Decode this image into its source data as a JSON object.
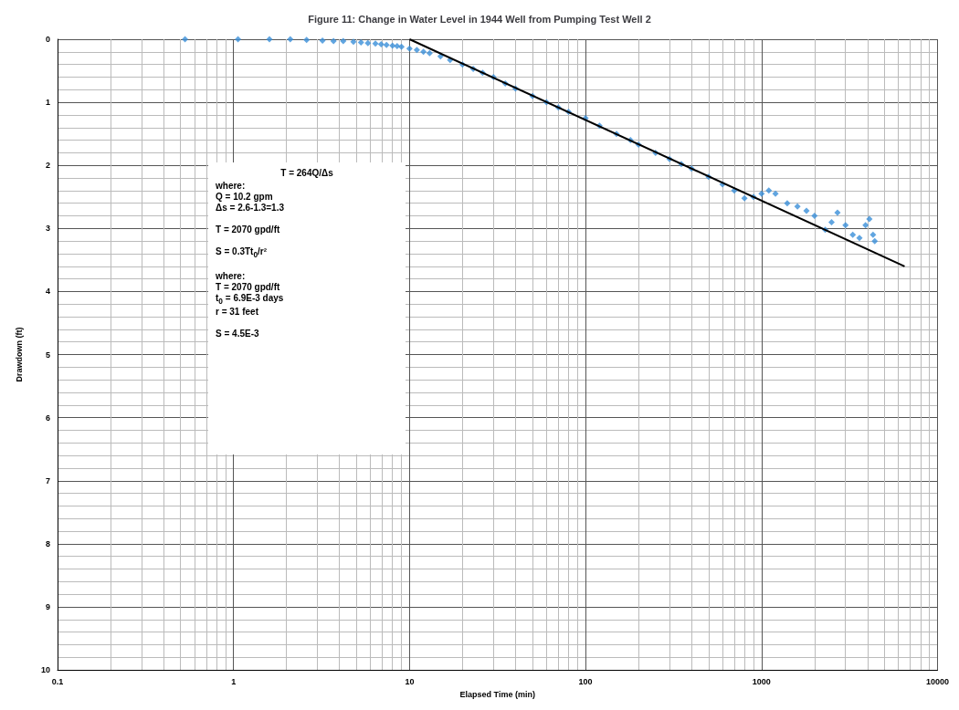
{
  "chart_data": {
    "type": "scatter",
    "title": "Figure 11: Change in Water Level in 1944 Well from Pumping Test Well 2",
    "xlabel": "Elapsed Time (min)",
    "ylabel": "Drawdown (ft)",
    "log": "x",
    "xlim": [
      0.1,
      10000
    ],
    "xticks": [
      0.1,
      1,
      10,
      100,
      1000,
      10000
    ],
    "ylim": [
      10,
      0
    ],
    "yticks": [
      0,
      1,
      2,
      3,
      4,
      5,
      6,
      7,
      8,
      9,
      10
    ],
    "grid": true,
    "marker": "diamond",
    "series": [
      {
        "color": "#3a8fd8",
        "x": [
          0.53,
          1.06,
          1.6,
          2.1,
          2.6,
          3.2,
          3.7,
          4.2,
          4.8,
          5.3,
          5.8,
          6.4,
          6.9,
          7.4,
          8,
          8.5,
          9,
          10,
          11,
          12,
          13,
          15,
          17,
          20,
          23,
          26,
          30,
          35,
          40,
          50,
          60,
          70,
          80,
          100,
          120,
          150,
          180,
          200,
          250,
          300,
          350,
          400,
          500,
          600,
          700,
          800,
          900,
          1000,
          1100,
          1200,
          1400,
          1600,
          1800,
          2000,
          2300,
          2500,
          2700,
          3000,
          3300,
          3600,
          3900,
          4100,
          4300,
          4400
        ],
        "values": [
          0,
          0,
          0,
          0,
          0.01,
          0.02,
          0.03,
          0.03,
          0.04,
          0.05,
          0.06,
          0.07,
          0.08,
          0.09,
          0.1,
          0.11,
          0.12,
          0.15,
          0.17,
          0.2,
          0.22,
          0.27,
          0.33,
          0.4,
          0.47,
          0.53,
          0.6,
          0.7,
          0.78,
          0.9,
          1.0,
          1.08,
          1.15,
          1.25,
          1.37,
          1.5,
          1.6,
          1.67,
          1.8,
          1.9,
          1.98,
          2.05,
          2.18,
          2.3,
          2.4,
          2.52,
          2.5,
          2.45,
          2.4,
          2.45,
          2.6,
          2.65,
          2.72,
          2.8,
          3.02,
          2.9,
          2.75,
          2.95,
          3.1,
          3.15,
          2.95,
          2.85,
          3.1,
          3.2
        ]
      },
      {
        "type": "line",
        "marker": "none",
        "color": "#000000",
        "x": [
          10,
          6500
        ],
        "values": [
          0,
          3.6
        ]
      }
    ],
    "annotations": [
      "T = 264Q/Δs",
      "where:\nQ = 10.2 gpm\nΔs = 2.6-1.3=1.3",
      "T = 2070 gpd/ft",
      "S = 0.3Tt$_{0}$/r²",
      "where:\nT = 2070 gpd/ft\nt$_{0}$ = 6.9E-3 days\nr = 31 feet",
      "S = 4.5E-3"
    ]
  }
}
